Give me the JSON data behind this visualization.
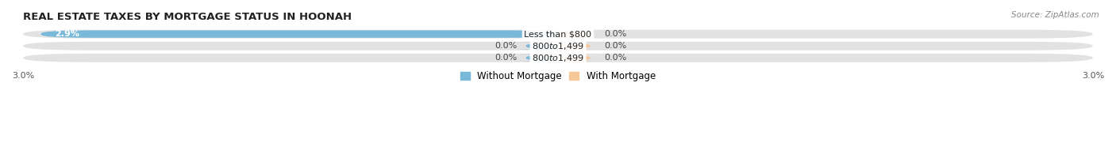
{
  "title": "REAL ESTATE TAXES BY MORTGAGE STATUS IN HOONAH",
  "source": "Source: ZipAtlas.com",
  "categories": [
    "Less than $800",
    "$800 to $1,499",
    "$800 to $1,499"
  ],
  "without_mortgage": [
    2.9,
    0.0,
    0.0
  ],
  "with_mortgage": [
    0.0,
    0.0,
    0.0
  ],
  "xlim_abs": 3.0,
  "color_without": "#7ab8d9",
  "color_with": "#f5c89a",
  "bar_height": 0.62,
  "bg_bar_height": 0.72,
  "background_bar": "#e2e2e2",
  "label_fontsize": 8.0,
  "title_fontsize": 9.5,
  "legend_fontsize": 8.5,
  "axis_label_color": "#555555",
  "legend_items": [
    "Without Mortgage",
    "With Mortgage"
  ],
  "value_label_color": "#444444",
  "cat_label_fontsize": 8.0,
  "small_bar_width": 0.18
}
